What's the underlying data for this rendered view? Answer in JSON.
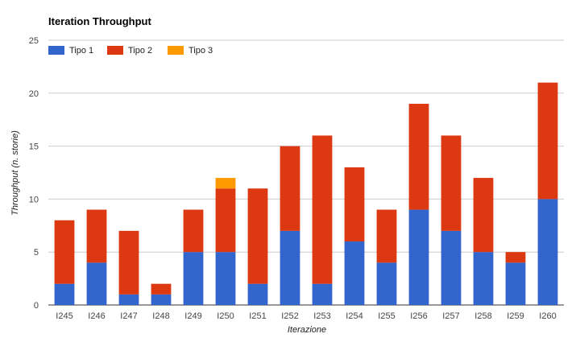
{
  "chart_data": {
    "type": "bar",
    "stacked": true,
    "title": "Iteration Throughput",
    "xlabel": "Iterazione",
    "ylabel": "Throughput (n. storie)",
    "ylim": [
      0,
      25
    ],
    "yticks": [
      0,
      5,
      10,
      15,
      20,
      25
    ],
    "grid": true,
    "legend_position": "top-left",
    "categories": [
      "I245",
      "I246",
      "I247",
      "I248",
      "I249",
      "I250",
      "I251",
      "I252",
      "I253",
      "I254",
      "I255",
      "I256",
      "I257",
      "I258",
      "I259",
      "I260"
    ],
    "series": [
      {
        "name": "Tipo 1",
        "color": "#3366cc",
        "values": [
          2,
          4,
          1,
          1,
          5,
          5,
          2,
          7,
          2,
          6,
          4,
          9,
          7,
          5,
          4,
          10
        ]
      },
      {
        "name": "Tipo 2",
        "color": "#dc3912",
        "values": [
          6,
          5,
          6,
          1,
          4,
          6,
          9,
          8,
          14,
          7,
          5,
          10,
          9,
          7,
          1,
          11
        ]
      },
      {
        "name": "Tipo 3",
        "color": "#ff9900",
        "values": [
          0,
          0,
          0,
          0,
          0,
          1,
          0,
          0,
          0,
          0,
          0,
          0,
          0,
          0,
          0,
          0
        ]
      }
    ]
  }
}
